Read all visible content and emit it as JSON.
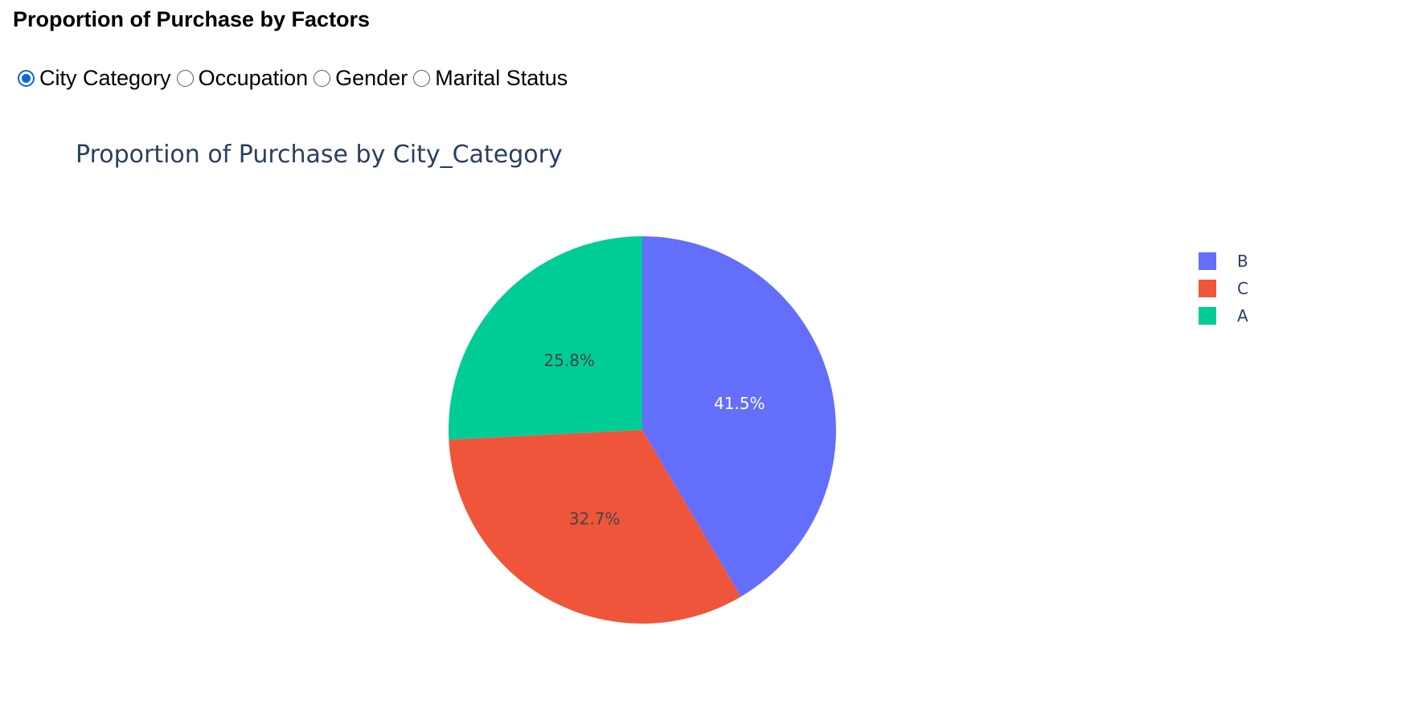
{
  "heading": "Proportion of Purchase by Factors",
  "radio_options": [
    {
      "label": "City Category",
      "checked": true
    },
    {
      "label": "Occupation",
      "checked": false
    },
    {
      "label": "Gender",
      "checked": false
    },
    {
      "label": "Marital Status",
      "checked": false
    }
  ],
  "chart_data": {
    "type": "pie",
    "title": "Proportion of Purchase by City_Category",
    "categories": [
      "B",
      "C",
      "A"
    ],
    "values": [
      41.5,
      32.7,
      25.8
    ],
    "labels": [
      "41.5%",
      "32.7%",
      "25.8%"
    ],
    "colors": [
      "#636efa",
      "#ef553b",
      "#00cc96"
    ],
    "label_colors": [
      "#ffffff",
      "#444444",
      "#444444"
    ],
    "legend_position": "right",
    "start_angle": "top, clockwise"
  }
}
